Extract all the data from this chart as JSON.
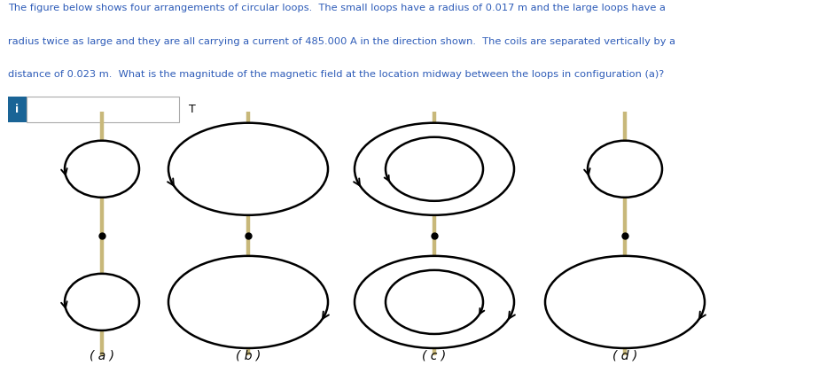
{
  "bg_color": "#ffffff",
  "text_color": "#2e5cb8",
  "title_lines": [
    "The figure below shows four arrangements of circular loops.  The small loops have a radius of 0.017 m and the large loops have a",
    "radius twice as large and they are all carrying a current of 485.000 A in the direction shown.  The coils are separated vertically by a",
    "distance of 0.023 m.  What is the magnitude of the magnetic field at the location midway between the loops in configuration (a)?"
  ],
  "input_box_color": "#1a6496",
  "input_box_label": "i",
  "input_T_label": "T",
  "panel_labels": [
    "( a )",
    "( b )",
    "( c )",
    "( d )"
  ],
  "line_color": "#c8b87a",
  "loop_color": "#000000",
  "dot_color": "#000000",
  "figsize": [
    9.24,
    4.21
  ],
  "dpi": 100
}
